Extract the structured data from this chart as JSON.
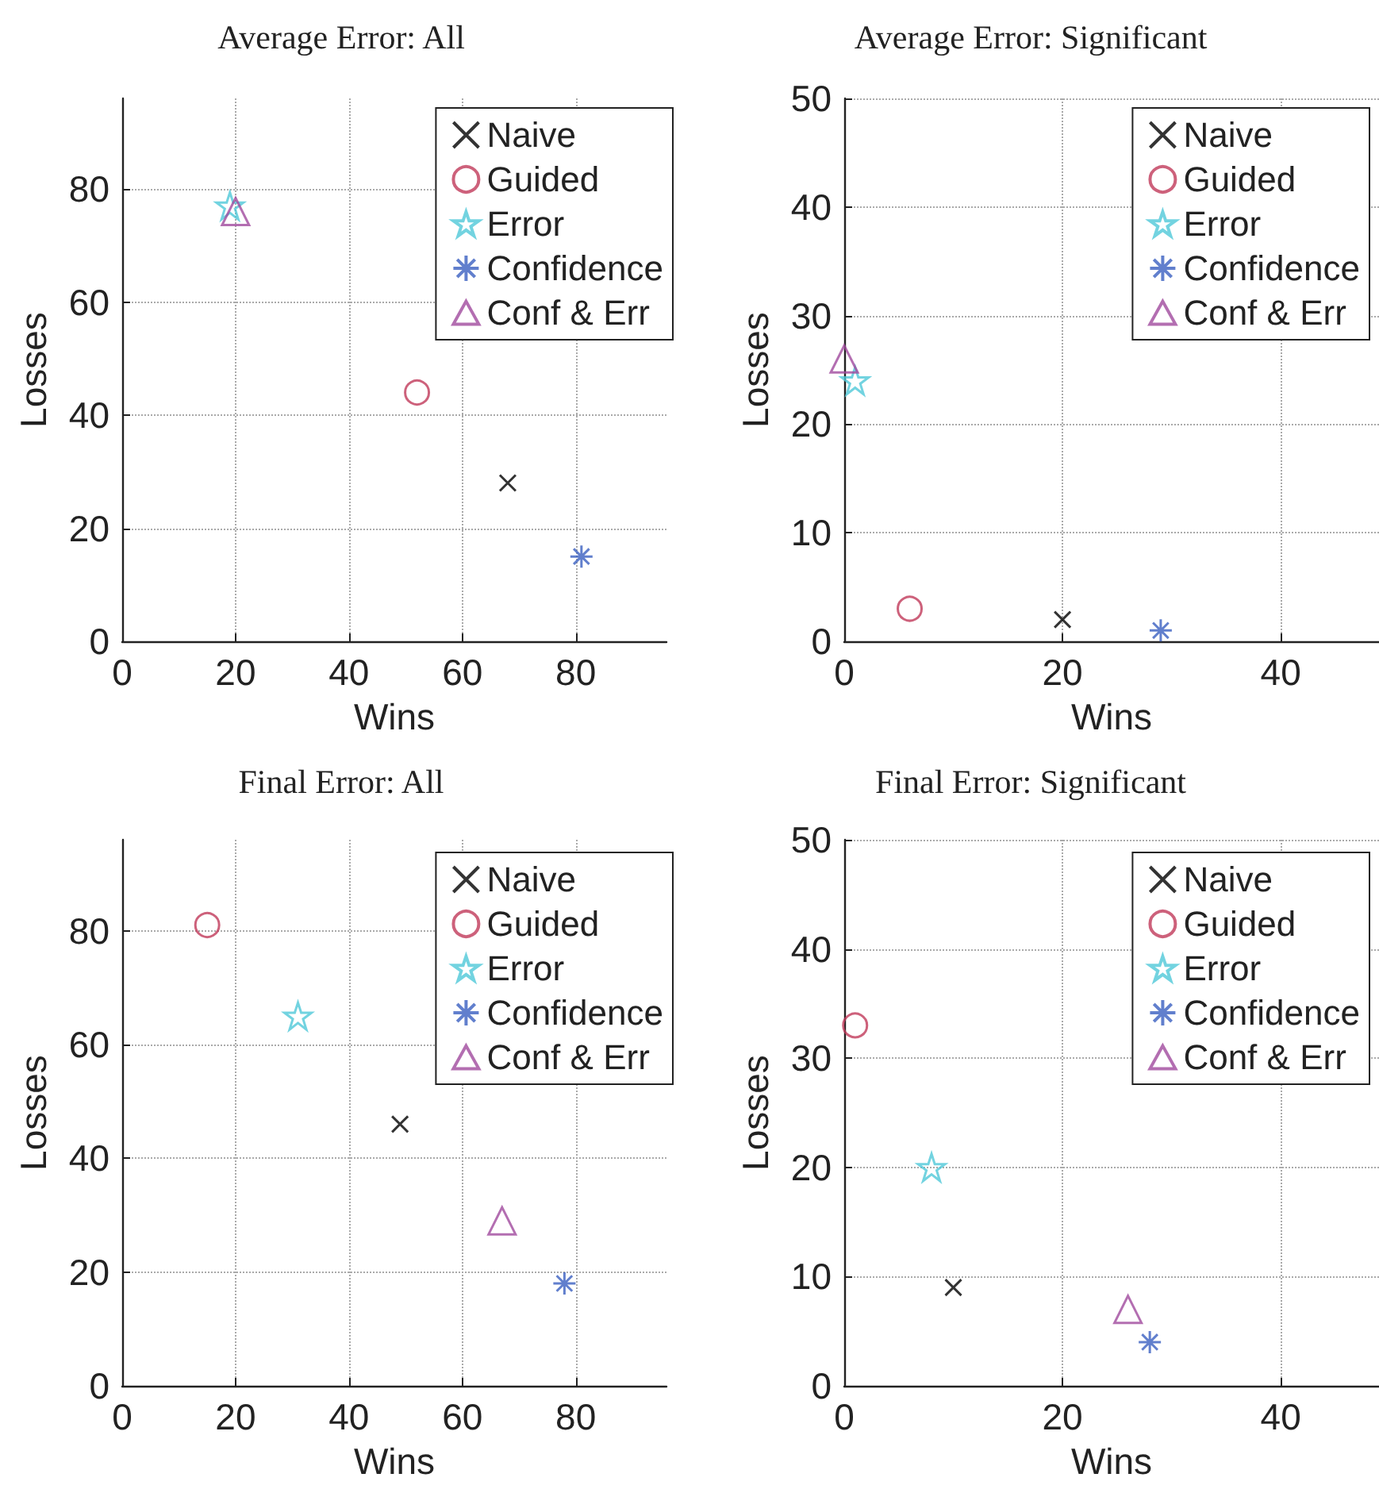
{
  "chart_data": [
    {
      "type": "scatter",
      "title": "Average Error: All",
      "xlabel": "Wins",
      "ylabel": "Losses",
      "xlim": [
        0,
        96
      ],
      "ylim": [
        0,
        96
      ],
      "xticks": [
        0,
        20,
        40,
        60,
        80
      ],
      "yticks": [
        0,
        20,
        40,
        60,
        80
      ],
      "grid": true,
      "legend": "top right",
      "series": [
        {
          "name": "Naive",
          "color": "#000000",
          "marker": "cross",
          "x": [
            68
          ],
          "values": [
            28
          ]
        },
        {
          "name": "Guided",
          "color": "#c0395a",
          "marker": "circle",
          "x": [
            52
          ],
          "values": [
            44
          ]
        },
        {
          "name": "Error",
          "color": "#4fc8d8",
          "marker": "star",
          "x": [
            19
          ],
          "values": [
            77
          ]
        },
        {
          "name": "Confidence",
          "color": "#3a5fc0",
          "x": [
            81
          ],
          "values": [
            15
          ]
        },
        {
          "name": "Conf & Err",
          "color": "#a04a9e",
          "marker": "triangle",
          "x": [
            20
          ],
          "values": [
            76
          ]
        }
      ]
    },
    {
      "type": "scatter",
      "title": "Average Error: Significant",
      "xlabel": "Wins",
      "ylabel": "Losses",
      "xlim": [
        0,
        49
      ],
      "ylim": [
        0,
        50
      ],
      "xticks": [
        0,
        20,
        40
      ],
      "yticks": [
        0,
        10,
        20,
        30,
        40,
        50
      ],
      "grid": true,
      "legend": "top right",
      "series": [
        {
          "name": "Naive",
          "color": "#000000",
          "marker": "cross",
          "x": [
            20
          ],
          "values": [
            2
          ]
        },
        {
          "name": "Guided",
          "color": "#c0395a",
          "marker": "circle",
          "x": [
            6
          ],
          "values": [
            3
          ]
        },
        {
          "name": "Error",
          "color": "#4fc8d8",
          "marker": "star",
          "x": [
            1
          ],
          "values": [
            24
          ]
        },
        {
          "name": "Confidence",
          "color": "#3a5fc0",
          "x": [
            29
          ],
          "values": [
            1
          ]
        },
        {
          "name": "Conf & Err",
          "color": "#a04a9e",
          "marker": "triangle",
          "x": [
            0
          ],
          "values": [
            26
          ]
        }
      ]
    },
    {
      "type": "scatter",
      "title": "Final Error: All",
      "xlabel": "Wins",
      "ylabel": "Losses",
      "xlim": [
        0,
        96
      ],
      "ylim": [
        0,
        96
      ],
      "xticks": [
        0,
        20,
        40,
        60,
        80
      ],
      "yticks": [
        0,
        20,
        40,
        60,
        80
      ],
      "grid": true,
      "legend": "top right",
      "series": [
        {
          "name": "Naive",
          "color": "#000000",
          "marker": "cross",
          "x": [
            49
          ],
          "values": [
            46
          ]
        },
        {
          "name": "Guided",
          "color": "#c0395a",
          "marker": "circle",
          "x": [
            15
          ],
          "values": [
            81
          ]
        },
        {
          "name": "Error",
          "color": "#4fc8d8",
          "marker": "star",
          "x": [
            31
          ],
          "values": [
            65
          ]
        },
        {
          "name": "Confidence",
          "color": "#3a5fc0",
          "x": [
            78
          ],
          "values": [
            18
          ]
        },
        {
          "name": "Conf & Err",
          "color": "#a04a9e",
          "marker": "triangle",
          "x": [
            67
          ],
          "values": [
            29
          ]
        }
      ]
    },
    {
      "type": "scatter",
      "title": "Final Error: Significant",
      "xlabel": "Wins",
      "ylabel": "Losses",
      "xlim": [
        0,
        49
      ],
      "ylim": [
        0,
        50
      ],
      "xticks": [
        0,
        20,
        40
      ],
      "yticks": [
        0,
        10,
        20,
        30,
        40,
        50
      ],
      "grid": true,
      "legend": "top right",
      "series": [
        {
          "name": "Naive",
          "color": "#000000",
          "marker": "cross",
          "x": [
            10
          ],
          "values": [
            9
          ]
        },
        {
          "name": "Guided",
          "color": "#c0395a",
          "marker": "circle",
          "x": [
            1
          ],
          "values": [
            33
          ]
        },
        {
          "name": "Error",
          "color": "#4fc8d8",
          "marker": "star",
          "x": [
            8
          ],
          "values": [
            20
          ]
        },
        {
          "name": "Confidence",
          "color": "#3a5fc0",
          "x": [
            28
          ],
          "values": [
            4
          ]
        },
        {
          "name": "Conf & Err",
          "color": "#a04a9e",
          "marker": "triangle",
          "x": [
            26
          ],
          "values": [
            7
          ]
        }
      ]
    }
  ]
}
